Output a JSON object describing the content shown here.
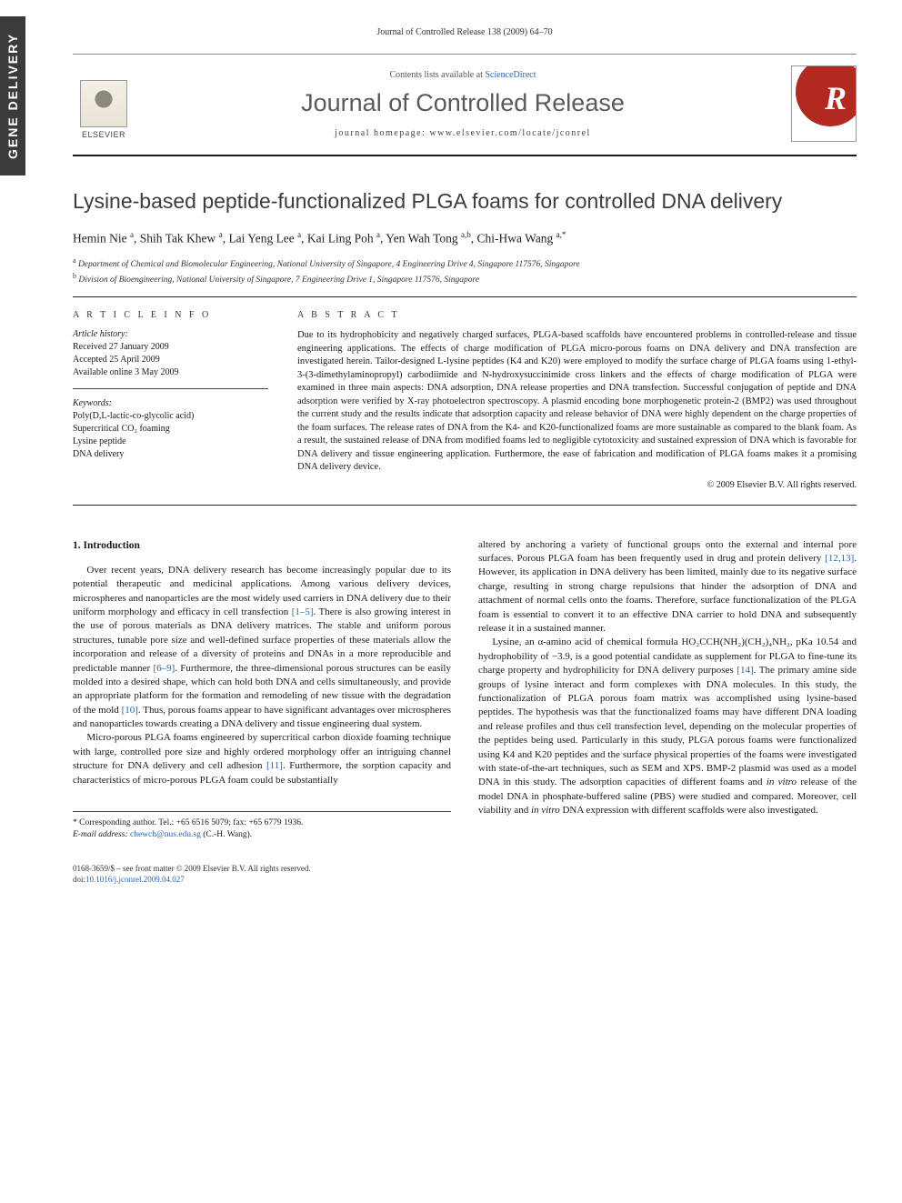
{
  "sidebar": {
    "label": "GENE DELIVERY"
  },
  "header": {
    "journal_ref": "Journal of Controlled Release 138 (2009) 64–70",
    "contents_prefix": "Contents lists available at ",
    "contents_link": "ScienceDirect",
    "journal_name": "Journal of Controlled Release",
    "homepage_prefix": "journal homepage: ",
    "homepage_url": "www.elsevier.com/locate/jconrel",
    "elsevier_word": "ELSEVIER",
    "cover_letter": "R"
  },
  "title": "Lysine-based peptide-functionalized PLGA foams for controlled DNA delivery",
  "authors_html": "Hemin Nie <sup>a</sup>, Shih Tak Khew <sup>a</sup>, Lai Yeng Lee <sup>a</sup>, Kai Ling Poh <sup>a</sup>, Yen Wah Tong <sup>a,b</sup>, Chi-Hwa Wang <sup>a,*</sup>",
  "affiliations": [
    {
      "sup": "a",
      "text": "Department of Chemical and Biomolecular Engineering, National University of Singapore, 4 Engineering Drive 4, Singapore 117576, Singapore"
    },
    {
      "sup": "b",
      "text": "Division of Bioengineering, National University of Singapore, 7 Engineering Drive 1, Singapore 117576, Singapore"
    }
  ],
  "info": {
    "heading": "A R T I C L E   I N F O",
    "history_label": "Article history:",
    "history": [
      "Received 27 January 2009",
      "Accepted 25 April 2009",
      "Available online 3 May 2009"
    ],
    "keywords_label": "Keywords:",
    "keywords": [
      "Poly(D,L-lactic-co-glycolic acid)",
      "Supercritical CO₂ foaming",
      "Lysine peptide",
      "DNA delivery"
    ]
  },
  "abstract": {
    "heading": "A B S T R A C T",
    "text": "Due to its hydrophobicity and negatively charged surfaces, PLGA-based scaffolds have encountered problems in controlled-release and tissue engineering applications. The effects of charge modification of PLGA micro-porous foams on DNA delivery and DNA transfection are investigated herein. Tailor-designed L-lysine peptides (K4 and K20) were employed to modify the surface charge of PLGA foams using 1-ethyl-3-(3-dimethylaminopropyl) carbodiimide and N-hydroxysuccinimide cross linkers and the effects of charge modification of PLGA were examined in three main aspects: DNA adsorption, DNA release properties and DNA transfection. Successful conjugation of peptide and DNA adsorption were verified by X-ray photoelectron spectroscopy. A plasmid encoding bone morphogenetic protein-2 (BMP2) was used throughout the current study and the results indicate that adsorption capacity and release behavior of DNA were highly dependent on the charge properties of the foam surfaces. The release rates of DNA from the K4- and K20-functionalized foams are more sustainable as compared to the blank foam. As a result, the sustained release of DNA from modified foams led to negligible cytotoxicity and sustained expression of DNA which is favorable for DNA delivery and tissue engineering application. Furthermore, the ease of fabrication and modification of PLGA foams makes it a promising DNA delivery device.",
    "copyright": "© 2009 Elsevier B.V. All rights reserved."
  },
  "body": {
    "section_heading": "1. Introduction",
    "left_paragraphs": [
      "Over recent years, DNA delivery research has become increasingly popular due to its potential therapeutic and medicinal applications. Among various delivery devices, microspheres and nanoparticles are the most widely used carriers in DNA delivery due to their uniform morphology and efficacy in cell transfection [1–5]. There is also growing interest in the use of porous materials as DNA delivery matrices. The stable and uniform porous structures, tunable pore size and well-defined surface properties of these materials allow the incorporation and release of a diversity of proteins and DNAs in a more reproducible and predictable manner [6–9]. Furthermore, the three-dimensional porous structures can be easily molded into a desired shape, which can hold both DNA and cells simultaneously, and provide an appropriate platform for the formation and remodeling of new tissue with the degradation of the mold [10]. Thus, porous foams appear to have significant advantages over microspheres and nanoparticles towards creating a DNA delivery and tissue engineering dual system.",
      "Micro-porous PLGA foams engineered by supercritical carbon dioxide foaming technique with large, controlled pore size and highly ordered morphology offer an intriguing channel structure for DNA delivery and cell adhesion [11]. Furthermore, the sorption capacity and characteristics of micro-porous PLGA foam could be substantially"
    ],
    "right_paragraphs": [
      "altered by anchoring a variety of functional groups onto the external and internal pore surfaces. Porous PLGA foam has been frequently used in drug and protein delivery [12,13]. However, its application in DNA delivery has been limited, mainly due to its negative surface charge, resulting in strong charge repulsions that hinder the adsorption of DNA and attachment of normal cells onto the foams. Therefore, surface functionalization of the PLGA foam is essential to convert it to an effective DNA carrier to hold DNA and subsequently release it in a sustained manner.",
      "Lysine, an α-amino acid of chemical formula HO₂CCH(NH₂)(CH₂)₄NH₂, pKa 10.54 and hydrophobility of −3.9, is a good potential candidate as supplement for PLGA to fine-tune its charge property and hydrophilicity for DNA delivery purposes [14]. The primary amine side groups of lysine interact and form complexes with DNA molecules. In this study, the functionalization of PLGA porous foam matrix was accomplished using lysine-based peptides. The hypothesis was that the functionalized foams may have different DNA loading and release profiles and thus cell transfection level, depending on the molecular properties of the peptides being used. Particularly in this study, PLGA porous foams were functionalized using K4 and K20 peptides and the surface physical properties of the foams were investigated with state-of-the-art techniques, such as SEM and XPS. BMP-2 plasmid was used as a model DNA in this study. The adsorption capacities of different foams and in vitro release of the model DNA in phosphate-buffered saline (PBS) were studied and compared. Moreover, cell viability and in vitro DNA expression with different scaffolds were also investigated."
    ],
    "cite_map": {
      "[1–5]": true,
      "[6–9]": true,
      "[10]": true,
      "[11]": true,
      "[12,13]": true,
      "[14]": true
    }
  },
  "corr": {
    "line1_label": "* Corresponding author. ",
    "line1_rest": "Tel.: +65 6516 5079; fax: +65 6779 1936.",
    "line2_label": "E-mail address: ",
    "email": "chewch@nus.edu.sg",
    "line2_rest": " (C.-H. Wang)."
  },
  "footer": {
    "line1": "0168-3659/$ – see front matter © 2009 Elsevier B.V. All rights reserved.",
    "doi_prefix": "doi:",
    "doi": "10.1016/j.jconrel.2009.04.027"
  },
  "italic_tokens": [
    "in vitro"
  ],
  "colors": {
    "link": "#2a63b0",
    "sidebar_bg": "#3b3b3b",
    "cover_red": "#b22a1f",
    "text": "#1a1a1a"
  }
}
